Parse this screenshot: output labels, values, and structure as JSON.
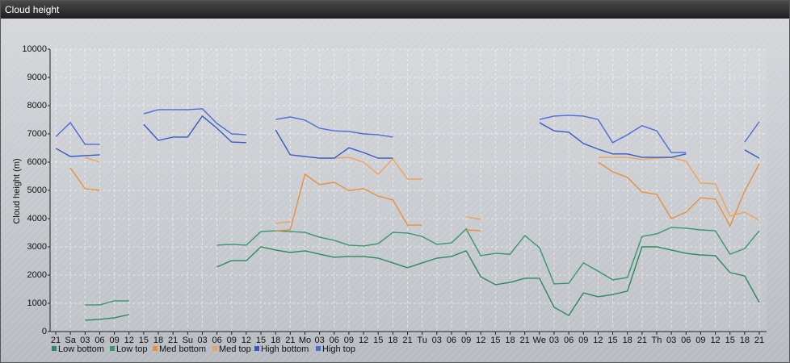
{
  "chart_data": {
    "type": "line",
    "title": "Cloud height",
    "y_label": "Cloud height (m)",
    "categories": [
      "21",
      "Sa",
      "03",
      "06",
      "09",
      "12",
      "15",
      "18",
      "21",
      "Su",
      "03",
      "06",
      "09",
      "12",
      "15",
      "18",
      "21",
      "Mo",
      "03",
      "06",
      "09",
      "12",
      "15",
      "18",
      "21",
      "Tu",
      "03",
      "06",
      "09",
      "12",
      "15",
      "18",
      "21",
      "We",
      "03",
      "06",
      "09",
      "12",
      "15",
      "18",
      "21",
      "Th",
      "03",
      "06",
      "09",
      "12",
      "15",
      "18",
      "21"
    ],
    "ylim": [
      0,
      10000
    ],
    "yticks": [
      0,
      1000,
      2000,
      3000,
      4000,
      5000,
      6000,
      7000,
      8000,
      9000,
      10000
    ],
    "grid": true,
    "series": [
      {
        "name": "Low bottom",
        "color": "#2a8a5c",
        "values": [
          null,
          null,
          400,
          430,
          490,
          600,
          null,
          null,
          null,
          null,
          null,
          2290,
          2510,
          2510,
          3000,
          2890,
          2800,
          2860,
          2740,
          2630,
          2660,
          2660,
          2600,
          2430,
          2260,
          2430,
          2600,
          2660,
          2860,
          1940,
          1660,
          1740,
          1890,
          1890,
          860,
          570,
          1370,
          1230,
          1310,
          1430,
          3000,
          3000,
          2890,
          2770,
          2710,
          2690,
          2090,
          1970,
          1030
        ]
      },
      {
        "name": "Low top",
        "color": "#36976a",
        "values": [
          null,
          null,
          940,
          940,
          1090,
          1090,
          null,
          null,
          null,
          null,
          null,
          3060,
          3090,
          3060,
          3540,
          3570,
          3540,
          3510,
          3340,
          3230,
          3060,
          3030,
          3110,
          3510,
          3490,
          3370,
          3090,
          3140,
          3630,
          2690,
          2770,
          2740,
          3400,
          2970,
          1690,
          1710,
          2430,
          2140,
          1830,
          1910,
          3370,
          3460,
          3690,
          3660,
          3600,
          3570,
          2740,
          2940,
          3570
        ]
      },
      {
        "name": "Med bottom",
        "color": "#e8903a",
        "values": [
          null,
          5800,
          5060,
          5000,
          null,
          null,
          null,
          null,
          null,
          null,
          null,
          null,
          null,
          null,
          null,
          3570,
          3600,
          5570,
          5200,
          5290,
          4990,
          5060,
          4800,
          4660,
          3770,
          3770,
          null,
          null,
          3600,
          3570,
          null,
          null,
          null,
          null,
          null,
          null,
          null,
          6000,
          5660,
          5460,
          4940,
          4860,
          4000,
          4230,
          4740,
          4690,
          3740,
          4970,
          5940
        ]
      },
      {
        "name": "Med top",
        "color": "#f0a356",
        "values": [
          null,
          null,
          6170,
          6000,
          null,
          null,
          null,
          null,
          null,
          null,
          null,
          null,
          null,
          null,
          null,
          3830,
          3890,
          null,
          6140,
          6140,
          6170,
          6000,
          5570,
          6110,
          5400,
          5400,
          null,
          null,
          4060,
          3970,
          null,
          null,
          null,
          null,
          null,
          null,
          null,
          6170,
          6170,
          6170,
          6090,
          6140,
          6170,
          6030,
          5260,
          5230,
          4090,
          4230,
          3940
        ]
      },
      {
        "name": "High bottom",
        "color": "#3558c8",
        "values": [
          6490,
          6200,
          6230,
          6260,
          null,
          null,
          7340,
          6770,
          6890,
          6890,
          7630,
          7200,
          6710,
          6690,
          null,
          7140,
          6260,
          6200,
          6140,
          6140,
          6510,
          6340,
          6140,
          6140,
          null,
          null,
          null,
          null,
          null,
          null,
          null,
          null,
          null,
          7400,
          7110,
          7060,
          6660,
          6460,
          6290,
          6290,
          6170,
          6170,
          6170,
          6290,
          null,
          null,
          null,
          6430,
          6140
        ]
      },
      {
        "name": "High top",
        "color": "#4a6cd6",
        "values": [
          6900,
          7400,
          6630,
          6630,
          null,
          null,
          7710,
          7860,
          7860,
          7860,
          7890,
          7370,
          7000,
          6970,
          null,
          7510,
          7600,
          7490,
          7200,
          7110,
          7090,
          7000,
          6970,
          6890,
          null,
          null,
          null,
          null,
          null,
          null,
          null,
          null,
          null,
          7510,
          7630,
          7660,
          7630,
          7510,
          6690,
          6970,
          7290,
          7110,
          6340,
          6340,
          null,
          null,
          null,
          6710,
          7430
        ]
      }
    ]
  }
}
